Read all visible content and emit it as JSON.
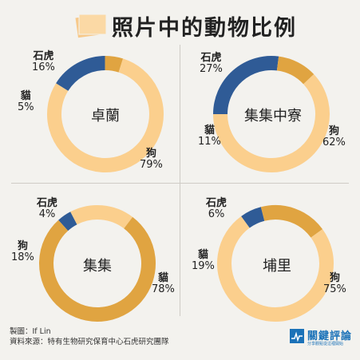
{
  "title": "照片中的動物比例",
  "colors": {
    "tiger": "#2f5b96",
    "cat": "#e0a441",
    "dog": "#fbcf8d",
    "background": "#f3f2ee",
    "logo": "#1b72b8"
  },
  "labels": {
    "tiger": "石虎",
    "cat": "貓",
    "dog": "狗"
  },
  "chart_data": [
    {
      "type": "pie",
      "title": "卓蘭",
      "categories": [
        "石虎",
        "貓",
        "狗"
      ],
      "values": [
        16,
        5,
        79
      ],
      "display": [
        "16%",
        "5%",
        "79%"
      ]
    },
    {
      "type": "pie",
      "title": "集集中寮",
      "categories": [
        "石虎",
        "貓",
        "狗"
      ],
      "values": [
        27,
        11,
        62
      ],
      "display": [
        "27%",
        "11%",
        "62%"
      ]
    },
    {
      "type": "pie",
      "title": "集集",
      "categories": [
        "石虎",
        "狗",
        "貓"
      ],
      "values": [
        4,
        18,
        78
      ],
      "display": [
        "4%",
        "18%",
        "78%"
      ]
    },
    {
      "type": "pie",
      "title": "埔里",
      "categories": [
        "石虎",
        "貓",
        "狗"
      ],
      "values": [
        6,
        19,
        75
      ],
      "display": [
        "6%",
        "19%",
        "75%"
      ]
    }
  ],
  "footer": {
    "credit": "製圖：If Lin",
    "source": "資料來源：特有生物研究保育中心石虎研究團隊"
  },
  "logo": {
    "name": "關鍵評論",
    "tagline": "分享觀點從這裡開始"
  }
}
